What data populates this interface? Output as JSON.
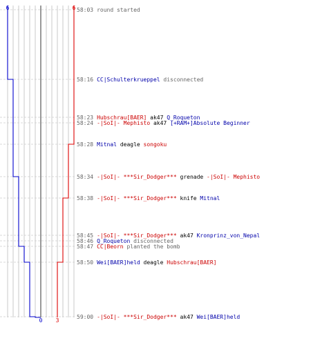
{
  "colors": {
    "team_a": "#0000cc",
    "team_b": "#dd0000",
    "grid": "#bbbbbb",
    "grid_center": "#555555",
    "guide": "#cccccc",
    "timestamp": "#666666",
    "team_a_name": "#0000aa",
    "team_b_name": "#cc0000"
  },
  "axis": {
    "left_top_count": "6",
    "right_top_count": "6",
    "left_bottom_count": "0",
    "right_bottom_count": "3"
  },
  "team_a_counts": [
    6,
    6,
    5,
    5,
    5,
    5,
    4,
    4,
    4,
    4,
    3,
    2,
    1,
    0
  ],
  "team_b_counts": [
    6,
    6,
    6,
    6,
    6,
    5,
    5,
    4,
    4,
    4,
    4,
    3,
    3,
    3
  ],
  "events": [
    {
      "time": "58:03",
      "segs": [
        {
          "t": "round started",
          "c": "evt"
        }
      ]
    },
    {
      "time": "58:16",
      "segs": [
        {
          "t": "CC|Schulterkrueppel",
          "c": "p-blue"
        },
        {
          "t": " disconnected",
          "c": "evt"
        }
      ]
    },
    {
      "time": "58:23",
      "segs": [
        {
          "t": "Hubschrau[BAER]",
          "c": "p-red"
        },
        {
          "t": " ak47 ",
          "c": "wep"
        },
        {
          "t": "Q_Roqueton",
          "c": "p-blue"
        }
      ]
    },
    {
      "time": "58:24",
      "segs": [
        {
          "t": "-|SoI|- Mephisto",
          "c": "p-red"
        },
        {
          "t": " ak47 ",
          "c": "wep"
        },
        {
          "t": "[+RAM+]Absolute Beginner",
          "c": "p-blue"
        }
      ]
    },
    {
      "time": "58:28",
      "segs": [
        {
          "t": "Mitnal",
          "c": "p-blue"
        },
        {
          "t": " deagle ",
          "c": "wep"
        },
        {
          "t": "songoku",
          "c": "p-red"
        }
      ]
    },
    {
      "time": "58:34",
      "segs": [
        {
          "t": "-|SoI|- ***Sir_Dodger***",
          "c": "p-red"
        },
        {
          "t": " grenade ",
          "c": "wep"
        },
        {
          "t": "-|SoI|- Mephisto",
          "c": "p-red"
        }
      ]
    },
    {
      "time": "58:38",
      "segs": [
        {
          "t": "-|SoI|- ***Sir_Dodger***",
          "c": "p-red"
        },
        {
          "t": " knife ",
          "c": "wep"
        },
        {
          "t": "Mitnal",
          "c": "p-blue"
        }
      ]
    },
    {
      "time": "58:45",
      "segs": [
        {
          "t": "-|SoI|- ***Sir_Dodger***",
          "c": "p-red"
        },
        {
          "t": " ak47 ",
          "c": "wep"
        },
        {
          "t": "Kronprinz_von_Nepal",
          "c": "p-blue"
        }
      ]
    },
    {
      "time": "58:46",
      "segs": [
        {
          "t": "Q_Roqueton",
          "c": "p-blue"
        },
        {
          "t": " disconnected",
          "c": "evt"
        }
      ]
    },
    {
      "time": "58:47",
      "segs": [
        {
          "t": "CC|Beorn",
          "c": "p-red"
        },
        {
          "t": " planted the bomb",
          "c": "evt"
        }
      ]
    },
    {
      "time": "58:50",
      "segs": [
        {
          "t": "Wei[BAER]held",
          "c": "p-blue"
        },
        {
          "t": " deagle ",
          "c": "wep"
        },
        {
          "t": "Hubschrau[BAER]",
          "c": "p-red"
        }
      ]
    },
    {
      "time": "59:00",
      "segs": [
        {
          "t": "-|SoI|- ***Sir_Dodger***",
          "c": "p-red"
        },
        {
          "t": " ak47 ",
          "c": "wep"
        },
        {
          "t": "Wei[BAER]held",
          "c": "p-blue"
        }
      ]
    }
  ]
}
